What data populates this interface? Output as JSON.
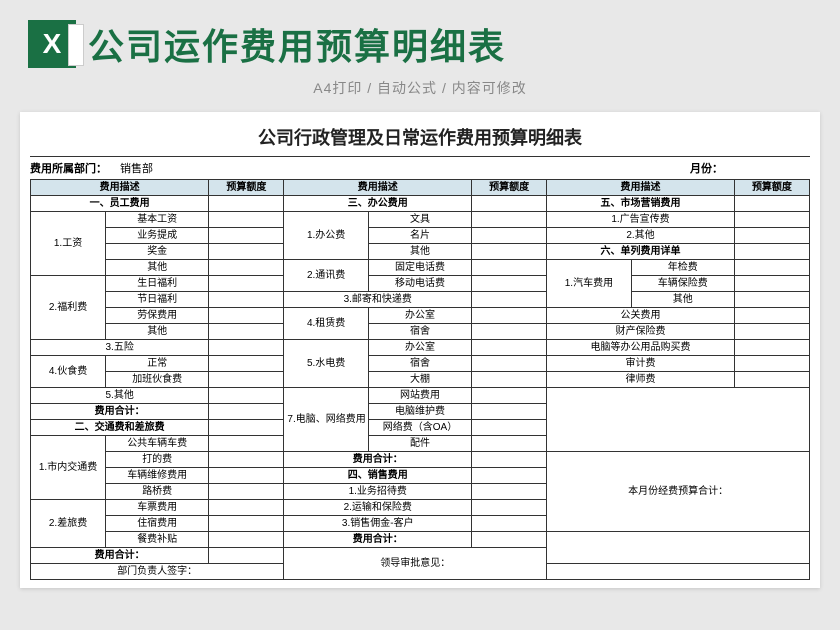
{
  "header": {
    "title": "公司运作费用预算明细表",
    "subtitle": "A4打印 / 自动公式 / 内容可修改"
  },
  "sheet": {
    "title": "公司行政管理及日常运作费用预算明细表",
    "dept_label": "费用所属部门：",
    "dept_value": "销售部",
    "month_label": "月份：",
    "col_desc": "费用描述",
    "col_amt": "预算额度",
    "sec1": "一、员工费用",
    "sec2": "二、交通费和差旅费",
    "sec3": "三、办公费用",
    "sec4": "四、销售费用",
    "sec5": "五、市场营销费用",
    "sec6": "六、单列费用详单",
    "r1_1": "1.工资",
    "r1_1a": "基本工资",
    "r1_1b": "业务提成",
    "r1_1c": "奖金",
    "r1_1d": "其他",
    "r1_2": "2.福利费",
    "r1_2a": "生日福利",
    "r1_2b": "节日福利",
    "r1_2c": "劳保费用",
    "r1_2d": "其他",
    "r1_3": "3.五险",
    "r1_4": "4.伙食费",
    "r1_4a": "正常",
    "r1_4b": "加班伙食费",
    "r1_5": "5.其他",
    "r2_1": "1.市内交通费",
    "r2_1a": "公共车辆车费",
    "r2_1b": "打的费",
    "r2_1c": "车辆维修费用",
    "r2_1d": "路桥费",
    "r2_2": "2.差旅费",
    "r2_2a": "车票费用",
    "r2_2b": "住宿费用",
    "r2_2c": "餐费补贴",
    "r3_1": "1.办公费",
    "r3_1a": "文具",
    "r3_1b": "名片",
    "r3_1c": "其他",
    "r3_2": "2.通讯费",
    "r3_2a": "固定电话费",
    "r3_2b": "移动电话费",
    "r3_3": "3.邮寄和快递费",
    "r3_4": "4.租赁费",
    "r3_4a": "办公室",
    "r3_4b": "宿舍",
    "r3_5": "5.水电费",
    "r3_5a": "办公室",
    "r3_5b": "宿舍",
    "r3_5c": "大棚",
    "r3_7": "7.电脑、网络费用",
    "r3_7a": "网站费用",
    "r3_7b": "电脑维护费",
    "r3_7c": "网络费（含OA）",
    "r3_7d": "配件",
    "r4_1": "1.业务招待费",
    "r4_2": "2.运输和保险费",
    "r4_3": "3.销售佣金-客户",
    "r5_1": "1.广告宣传费",
    "r5_2": "2.其他",
    "r6_1": "1.汽车费用",
    "r6_1a": "年检费",
    "r6_1b": "车辆保险费",
    "r6_1c": "其他",
    "r6_2": "公关费用",
    "r6_3": "财产保险费",
    "r6_4": "电脑等办公用品购买费",
    "r6_5": "审计费",
    "r6_6": "律师费",
    "subtotal": "费用合计：",
    "month_total": "本月份经费预算合计：",
    "sign1": "部门负责人签字：",
    "sign2": "领导审批意见："
  }
}
